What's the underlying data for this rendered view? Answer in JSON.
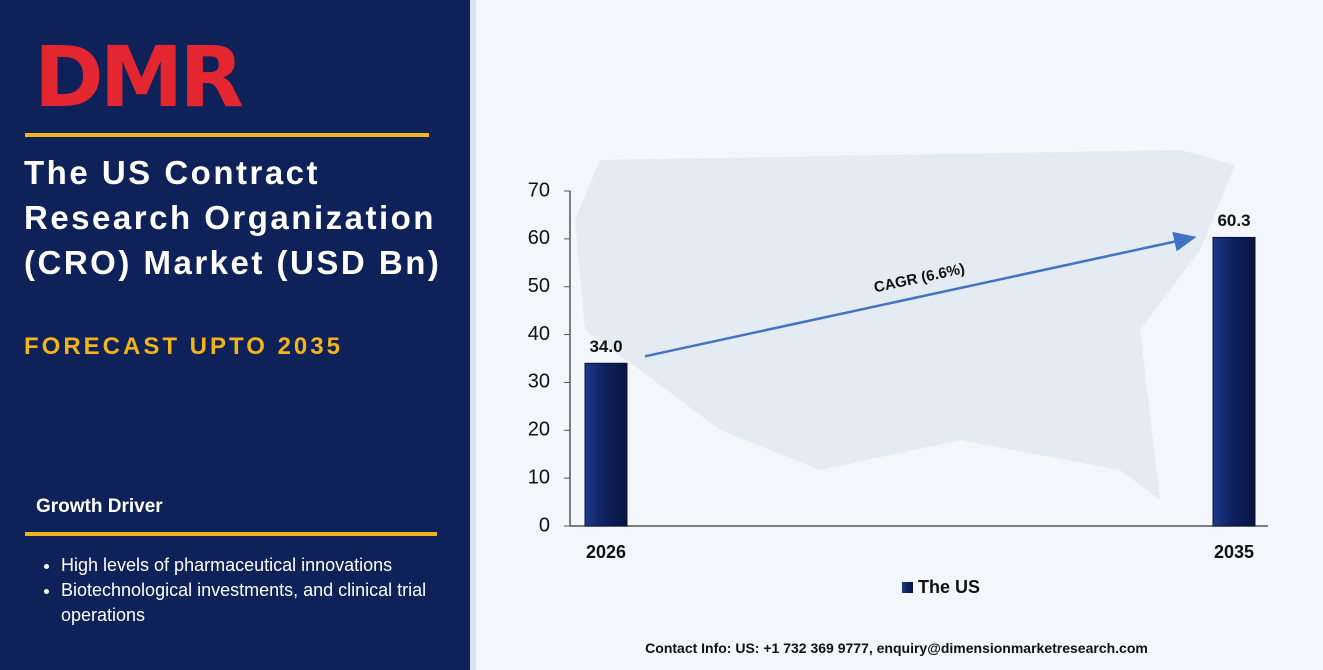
{
  "logo": "DMR",
  "chart_data": {
    "type": "bar",
    "title": "The US Contract Research Organization (CRO) Market (USD Bn)",
    "subtitle": "FORECAST UPTO 2035",
    "categories": [
      "2026",
      "2035"
    ],
    "series": [
      {
        "name": "The US",
        "color": "#0e1f5c",
        "values": [
          34.0,
          60.3
        ],
        "value_labels": [
          "34.0",
          "60.3"
        ]
      }
    ],
    "ylim": [
      0,
      70
    ],
    "yticks": [
      0,
      10,
      20,
      30,
      40,
      50,
      60,
      70
    ],
    "annotation": "CAGR (6.6%)"
  },
  "growth_driver": {
    "heading": "Growth Driver",
    "bullets": [
      "High levels of pharmaceutical innovations",
      "Biotechnological investments, and clinical trial operations"
    ]
  },
  "footer": "Contact Info: US: +1 732 369 9777, enquiry@dimensionmarketresearch.com"
}
